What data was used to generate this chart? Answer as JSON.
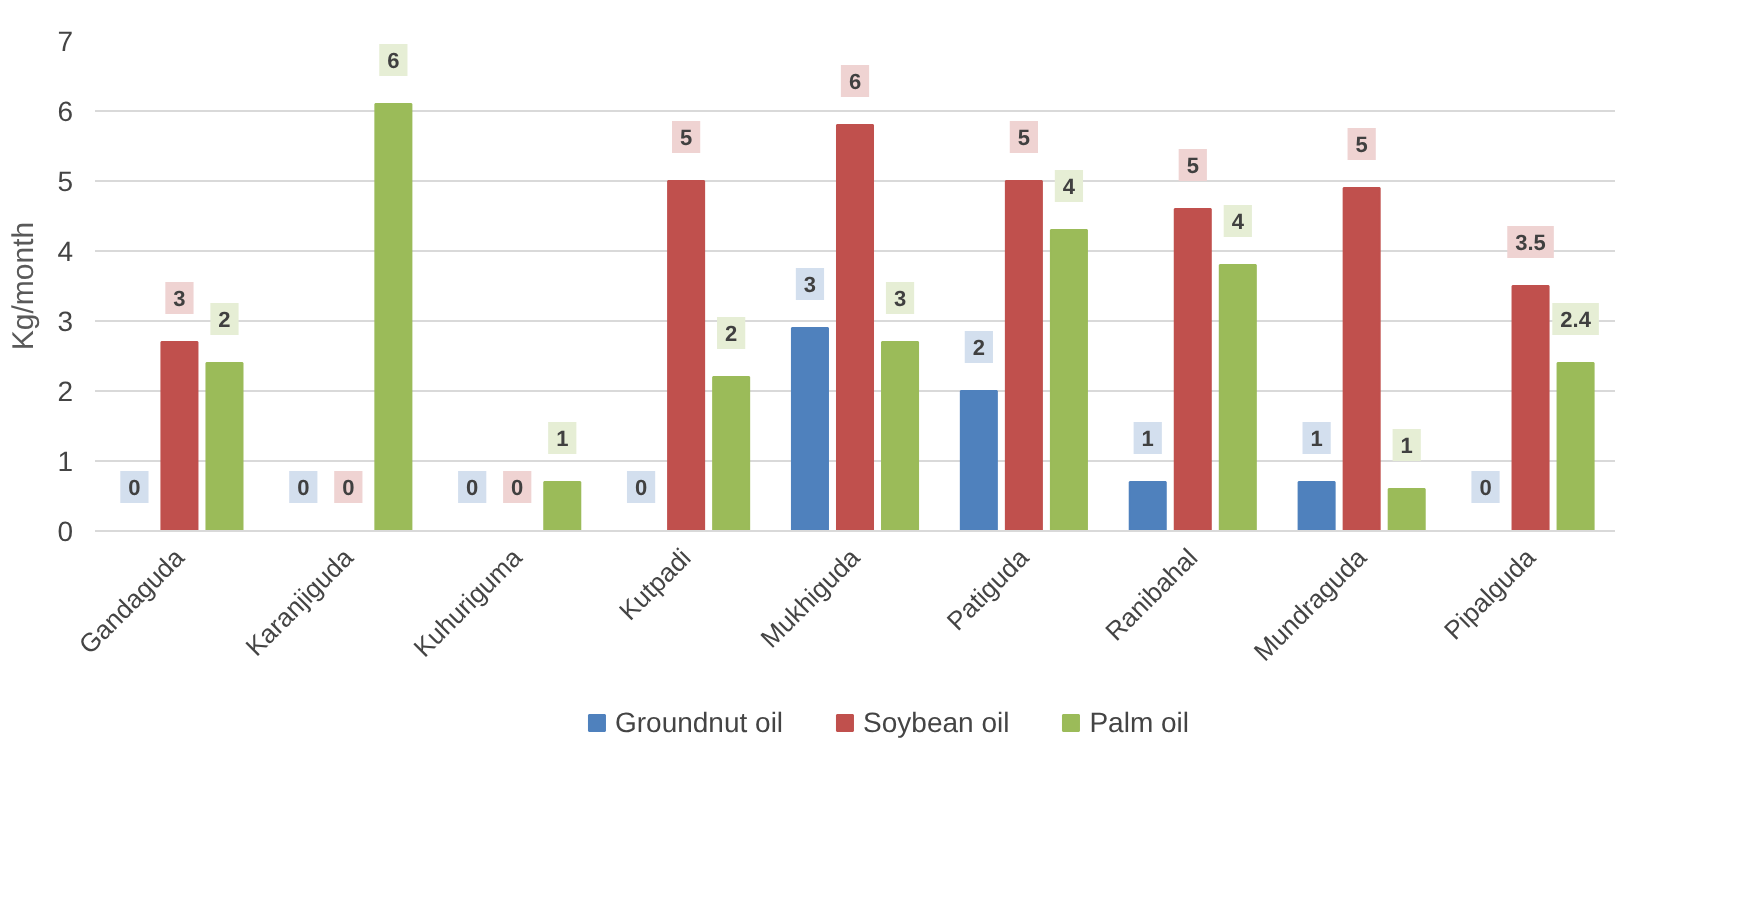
{
  "chart_data": {
    "type": "bar",
    "ylabel": "Kg/month",
    "categories": [
      "Gandaguda",
      "Karanjiguda",
      "Kuhuriguma",
      "Kutpadi",
      "Mukhiguda",
      "Patiguda",
      "Ranibahal",
      "Mundraguda",
      "Pipalguda"
    ],
    "series": [
      {
        "name": "Groundnut oil",
        "color": "#4f81bd",
        "values": [
          0,
          0,
          0,
          0,
          2.9,
          2.0,
          0.7,
          0.7,
          0
        ],
        "value_labels": [
          "0",
          "0",
          "0",
          "0",
          "3",
          "2",
          "1",
          "1",
          "0"
        ]
      },
      {
        "name": "Soybean oil",
        "color": "#c0504d",
        "values": [
          2.7,
          0,
          0,
          5.0,
          5.8,
          5.0,
          4.6,
          4.9,
          3.5
        ],
        "value_labels": [
          "3",
          "0",
          "0",
          "5",
          "6",
          "5",
          "5",
          "5",
          "3.5"
        ]
      },
      {
        "name": "Palm oil",
        "color": "#9bbb59",
        "values": [
          2.4,
          6.1,
          0.7,
          2.2,
          2.7,
          4.3,
          3.8,
          0.6,
          2.4
        ],
        "value_labels": [
          "2",
          "6",
          "1",
          "2",
          "3",
          "4",
          "4",
          "1",
          "2.4"
        ]
      }
    ],
    "ylim": [
      0,
      7
    ],
    "yticks": [
      0,
      1,
      2,
      3,
      4,
      5,
      6,
      7
    ],
    "grid": "y",
    "legend": "bottom"
  }
}
